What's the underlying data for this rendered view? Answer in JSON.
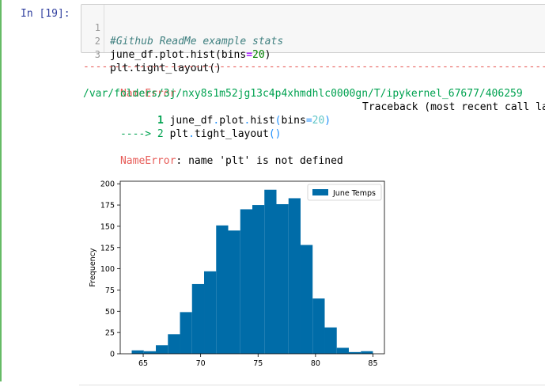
{
  "cell": {
    "prompt": "In [19]:",
    "code_lines": [
      {
        "n": "1",
        "text": "#Github ReadMe example stats"
      },
      {
        "n": "2",
        "pre": "june_df.plot.hist(bins",
        "eq": "=",
        "num": "20",
        "post": ")"
      },
      {
        "n": "3",
        "text": "plt.tight_layout()"
      }
    ]
  },
  "error": {
    "dashes": "---------------------------------------------------------------------------",
    "name": "NameError",
    "traceback_label": "Traceback (most recent call last)",
    "path": "/var/folders/3j/nxy8s1m52jg13c4p4xhmdhlc0000gn/T/ipykernel_67677/406259",
    "line1_num": "1",
    "line1_pre": " june_df",
    "line1_dot": ".",
    "line1_mid": "plot",
    "line1_dot2": ".",
    "line1_hist": "hist",
    "line1_paren": "(",
    "line1_bins": "bins",
    "line1_eq": "=",
    "line1_val": "20",
    "line1_close": ")",
    "arrow": "----> 2",
    "line2_plt": " plt",
    "line2_dot": ".",
    "line2_fn": "tight_layout",
    "line2_parens": "()",
    "message_name": "NameError",
    "message_text": ": name 'plt' is not defined"
  },
  "chart_data": {
    "type": "bar",
    "title": "",
    "xlabel": "",
    "ylabel": "Frequency",
    "legend": [
      "June Temps"
    ],
    "legend_position": "top-right",
    "color": "#006ca8",
    "xlim": [
      63.0,
      86.0
    ],
    "ylim": [
      0,
      203
    ],
    "xticks": [
      65,
      70,
      75,
      80,
      85
    ],
    "yticks": [
      0,
      25,
      50,
      75,
      100,
      125,
      150,
      175,
      200
    ],
    "bin_edges": [
      64,
      65.05,
      66.1,
      67.15,
      68.2,
      69.25,
      70.3,
      71.35,
      72.4,
      73.45,
      74.5,
      75.55,
      76.6,
      77.65,
      78.7,
      79.75,
      80.8,
      81.85,
      82.9,
      83.95,
      85
    ],
    "values": [
      4,
      3,
      10,
      23,
      49,
      82,
      97,
      151,
      145,
      170,
      175,
      193,
      176,
      183,
      128,
      65,
      31,
      7,
      2,
      3
    ]
  }
}
